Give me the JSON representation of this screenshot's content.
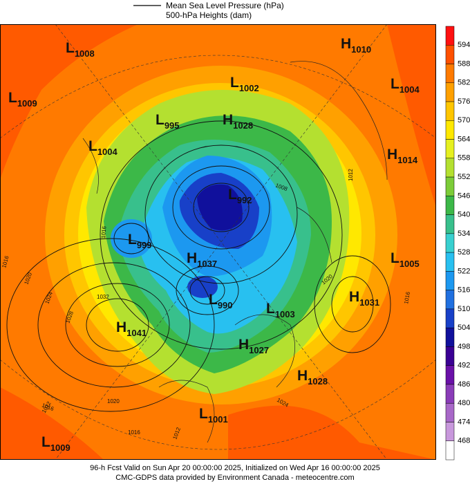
{
  "legend": {
    "line1": "Mean Sea Level Pressure (hPa)",
    "line2": "500-hPa Heights (dam)"
  },
  "colorbar": {
    "labels": [
      "594",
      "588",
      "582",
      "576",
      "570",
      "564",
      "558",
      "552",
      "546",
      "540",
      "534",
      "528",
      "522",
      "516",
      "510",
      "504",
      "498",
      "492",
      "486",
      "480",
      "474",
      "468"
    ],
    "colors": [
      "#ff1010",
      "#ff5000",
      "#ff7a00",
      "#ffa000",
      "#ffc600",
      "#ffe800",
      "#e6f020",
      "#b4e030",
      "#7ccc38",
      "#3cb848",
      "#38c08c",
      "#38d0d0",
      "#28c0f0",
      "#1c98f0",
      "#2070e0",
      "#1840c8",
      "#10109c",
      "#3a0094",
      "#6a10a8",
      "#8a3cb8",
      "#a868c8",
      "#c898dc",
      "#ffffff"
    ]
  },
  "centers": [
    {
      "letter": "L",
      "value": "1008"
    },
    {
      "letter": "H",
      "value": "1010"
    },
    {
      "letter": "L",
      "value": "1009"
    },
    {
      "letter": "L",
      "value": "1002"
    },
    {
      "letter": "L",
      "value": "1004"
    },
    {
      "letter": "L",
      "value": "995"
    },
    {
      "letter": "H",
      "value": "1028"
    },
    {
      "letter": "L",
      "value": "1004"
    },
    {
      "letter": "H",
      "value": "1014"
    },
    {
      "letter": "L",
      "value": "992"
    },
    {
      "letter": "L",
      "value": "999"
    },
    {
      "letter": "H",
      "value": "1037"
    },
    {
      "letter": "L",
      "value": "1005"
    },
    {
      "letter": "H",
      "value": "1031"
    },
    {
      "letter": "L",
      "value": "990"
    },
    {
      "letter": "L",
      "value": "1003"
    },
    {
      "letter": "H",
      "value": "1041"
    },
    {
      "letter": "H",
      "value": "1027"
    },
    {
      "letter": "H",
      "value": "1028"
    },
    {
      "letter": "L",
      "value": "1001"
    },
    {
      "letter": "L",
      "value": "1009"
    }
  ],
  "isobar_labels": [
    "1016",
    "1020",
    "1024",
    "1028",
    "1032",
    "1016",
    "1012",
    "1016",
    "1012",
    "1020",
    "1024",
    "1020",
    "1016",
    "1012",
    "1008",
    "1016"
  ],
  "footer": {
    "line1": "96-h Fcst Valid on Sun Apr 20 00:00:00 2025, Initialized on Wed Apr 16 00:00:00 2025",
    "line2": "CMC-GDPS data provided by Environment Canada - meteocentre.com"
  }
}
